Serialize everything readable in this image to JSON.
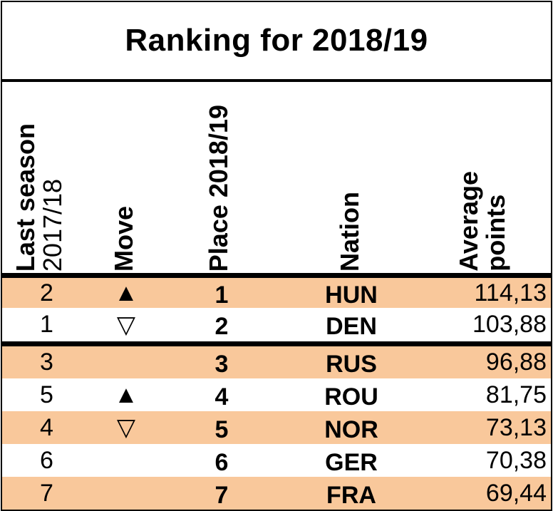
{
  "title": "Ranking for 2018/19",
  "headers": {
    "last_season_line1": "Last season",
    "last_season_line2": "2017/18",
    "move": "Move",
    "place": "Place 2018/19",
    "nation": "Nation",
    "points_line1": "Average",
    "points_line2": "points"
  },
  "colors": {
    "row_highlight": "#f9c89b",
    "border": "#000000"
  },
  "rows": [
    {
      "last": "2",
      "move": "▲",
      "place": "1",
      "nation": "HUN",
      "points": "114,13"
    },
    {
      "last": "1",
      "move": "▽",
      "place": "2",
      "nation": "DEN",
      "points": "103,88"
    },
    {
      "last": "3",
      "move": "",
      "place": "3",
      "nation": "RUS",
      "points": "96,88"
    },
    {
      "last": "5",
      "move": "▲",
      "place": "4",
      "nation": "ROU",
      "points": "81,75"
    },
    {
      "last": "4",
      "move": "▽",
      "place": "5",
      "nation": "NOR",
      "points": "73,13"
    },
    {
      "last": "6",
      "move": "",
      "place": "6",
      "nation": "GER",
      "points": "70,38"
    },
    {
      "last": "7",
      "move": "",
      "place": "7",
      "nation": "FRA",
      "points": "69,44"
    }
  ]
}
